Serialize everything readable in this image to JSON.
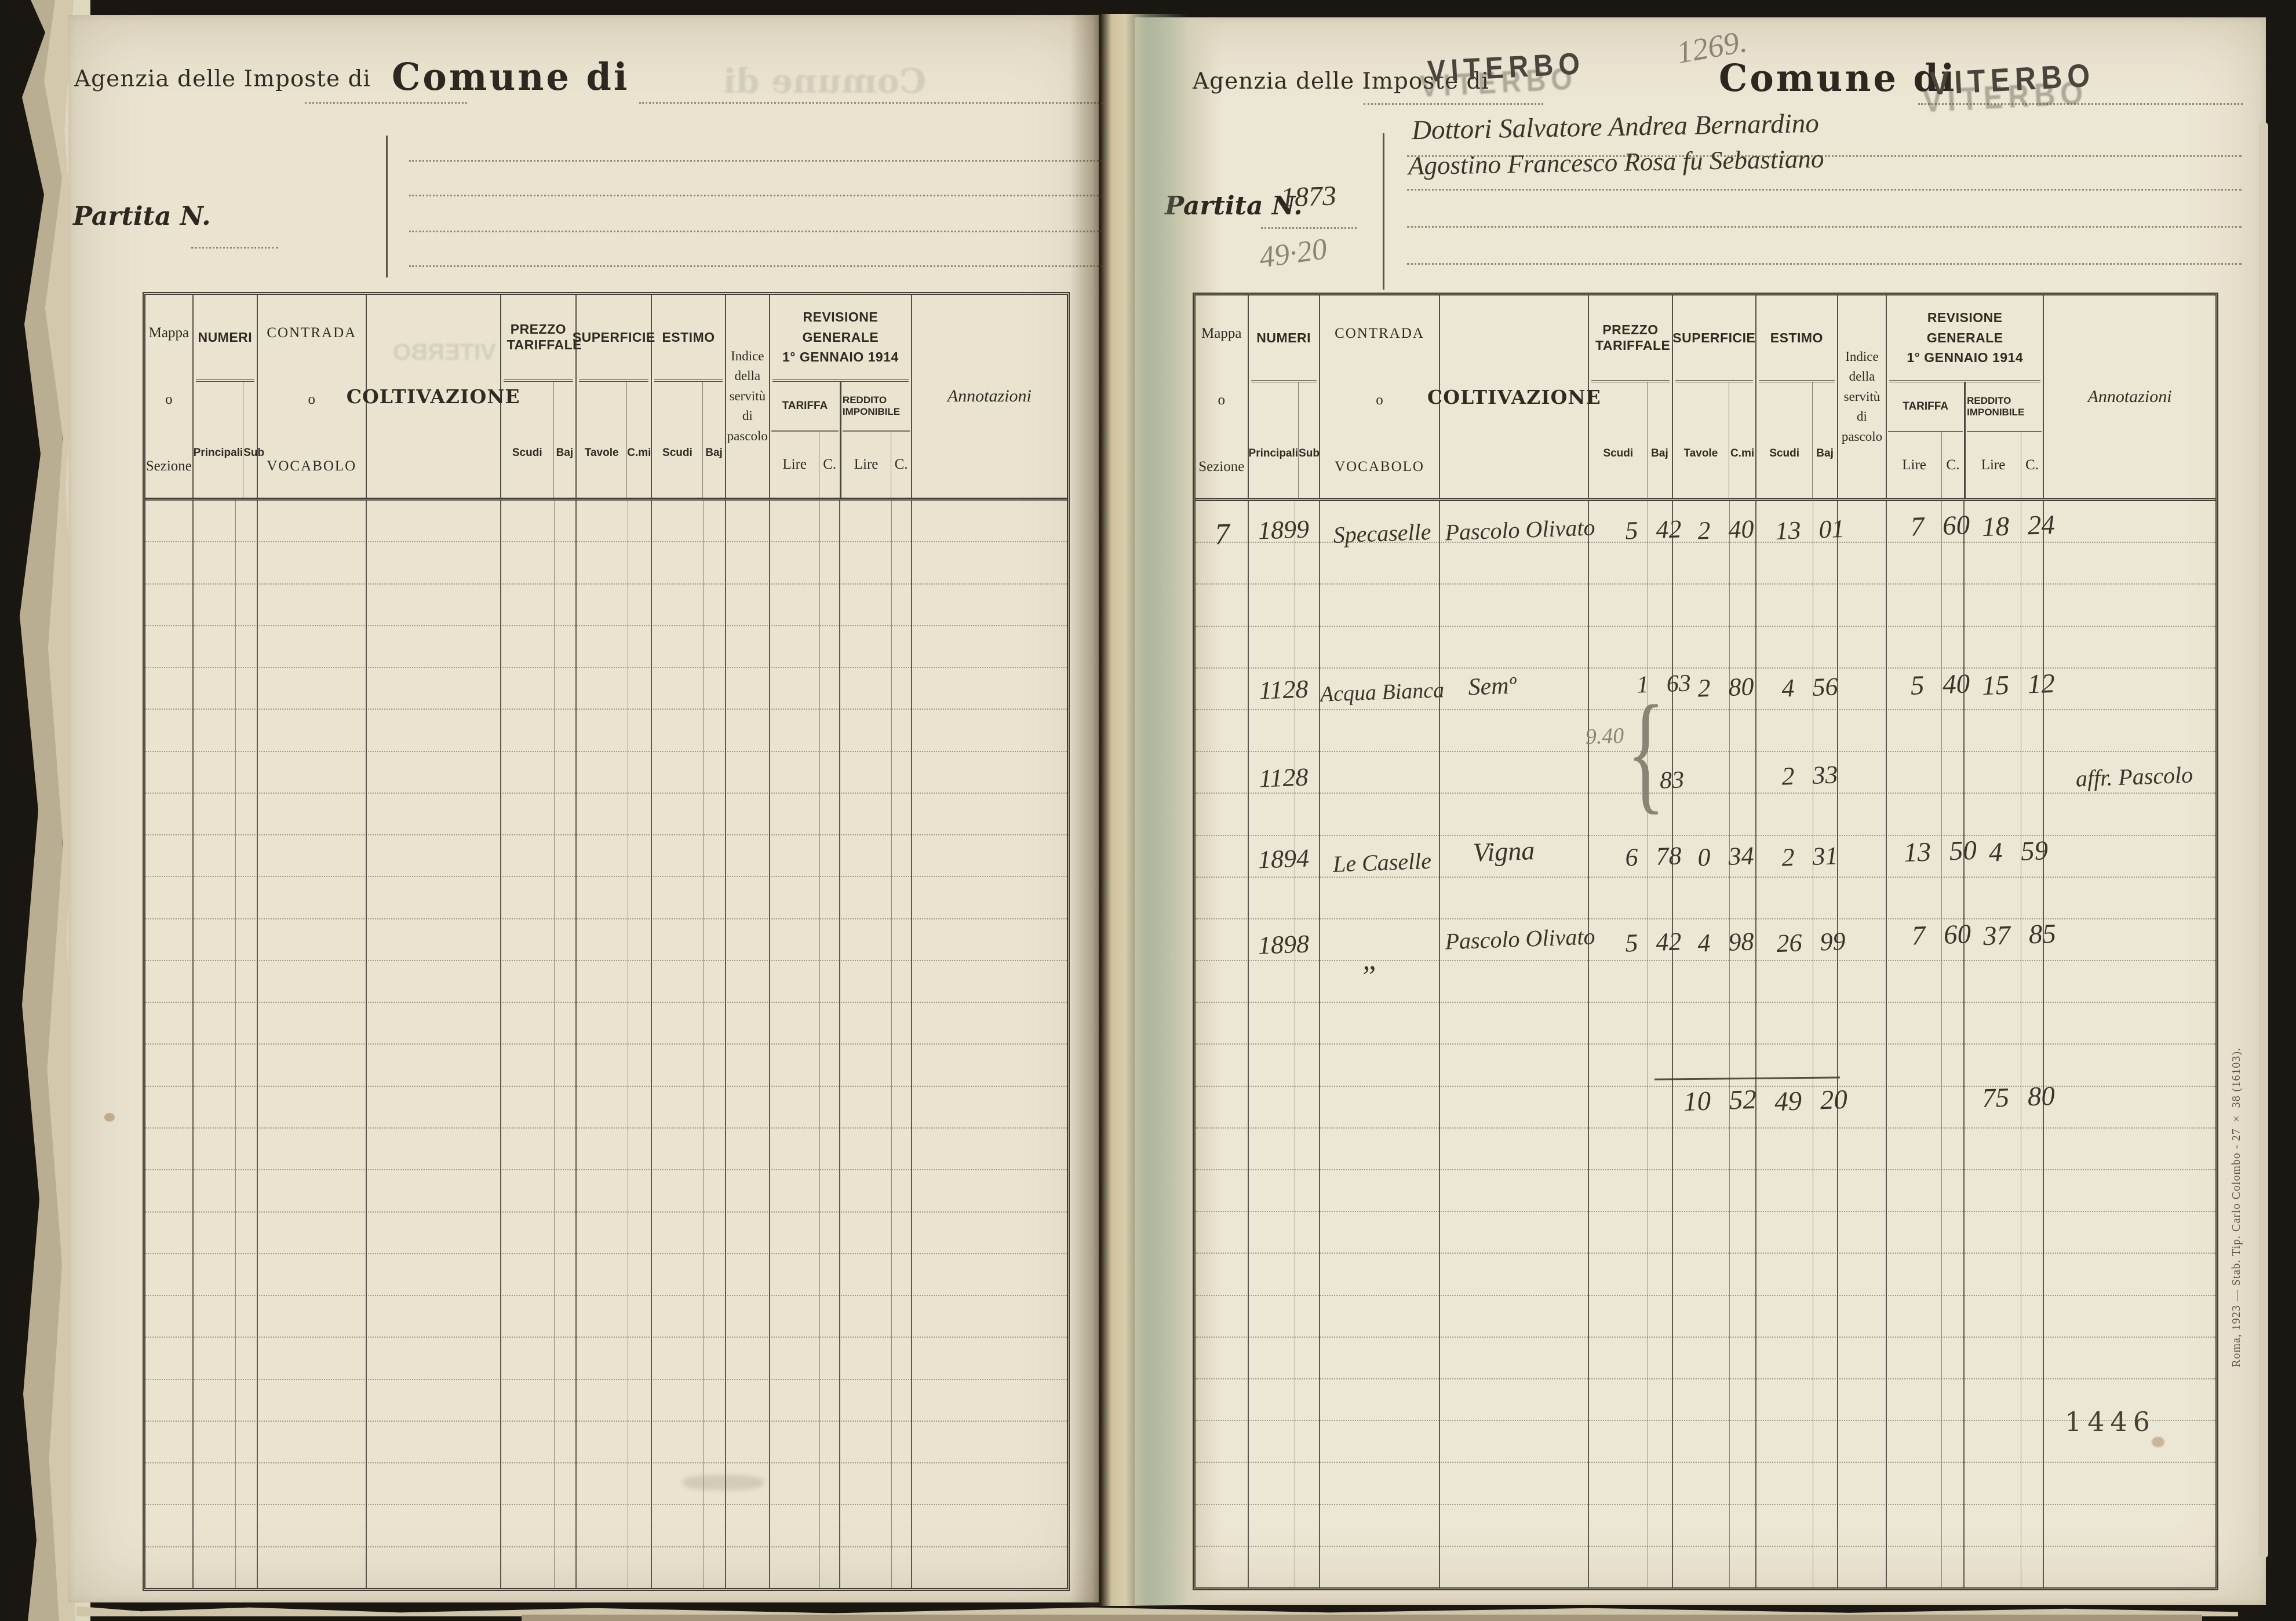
{
  "left_page": {
    "agenzia_label": "Agenzia delle Imposte di",
    "comune_label": "Comune di",
    "partita_label": "Partita N."
  },
  "right_page": {
    "agenzia_label": "Agenzia delle Imposte di",
    "agenzia_value": "VITERBO",
    "comune_label": "Comune di",
    "comune_value": "VITERBO",
    "partita_label": "Partita N.",
    "partita_value": "1873",
    "pencil_folio": "1269.",
    "pencil_total": "49·20",
    "owner_line1": "Dottori Salvatore Andrea Bernardino",
    "owner_line2": "Agostino Francesco Rosa fu Sebastiano",
    "page_number": "1446",
    "imprint": "Roma, 1923 — Stab. Tip. Carlo Colombo - 27 × 38 (16103)."
  },
  "th": {
    "mappa": "Mappa",
    "o": "o",
    "sezione": "Sezione",
    "numeri": "NUMERI",
    "principali": "Principali",
    "sub": "Sub",
    "contrada": "CONTRADA",
    "vocabolo": "VOCABOLO",
    "coltivazione": "COLTIVAZIONE",
    "prezzo": "PREZZO TARIFFALE",
    "superficie": "SUPERFICIE",
    "estimo": "ESTIMO",
    "scudi": "Scudi",
    "baj": "Baj",
    "tavole": "Tavole",
    "cmi": "C.mi",
    "indice": [
      "Indice",
      "della",
      "servitù",
      "di",
      "pascolo"
    ],
    "revisione1": "REVISIONE GENERALE",
    "revisione2": "1° GENNAIO 1914",
    "tariffa": "TARIFFA",
    "reddito": "REDDITO IMPONIBILE",
    "lire": "Lire",
    "c": "C.",
    "annotazioni": "Annotazioni"
  },
  "rows": [
    {
      "mappa": "7",
      "num": "1899",
      "contrada": "Specaselle",
      "colt": "Pascolo Olivato",
      "prezzo": "5 42",
      "sup": "2 40",
      "estimo": "13 01",
      "tariffa": "7 60",
      "reddito": "18 24"
    },
    {
      "num": "1128",
      "contrada": "Acqua Bianca",
      "colt": "Semº",
      "prezzo": "1 63",
      "sup": "2 80",
      "estimo": "4 56",
      "tariffa": "5 40",
      "reddito": "15 12",
      "pencil_price": "9.40",
      "pencil_brace": "{"
    },
    {
      "num": "1128",
      "prezzo": "83",
      "estimo": "2 33",
      "annot": "affr. Pascolo"
    },
    {
      "num": "1894",
      "contrada": "Le Caselle",
      "colt": "Vigna",
      "prezzo": "6 78",
      "sup": "0 34",
      "estimo": "2 31",
      "tariffa": "13 50",
      "reddito": "4 59"
    },
    {
      "num": "1898",
      "contrada": "„",
      "colt": "Pascolo Olivato",
      "prezzo": "5 42",
      "sup": "4 98",
      "estimo": "26 99",
      "tariffa": "7 60",
      "reddito": "37 85"
    }
  ],
  "totals": {
    "sup": "10 52",
    "estimo": "49 20",
    "reddito": "75 80"
  },
  "ghosts": {
    "comune": "Comune di",
    "viterbo": "VITERBO"
  }
}
